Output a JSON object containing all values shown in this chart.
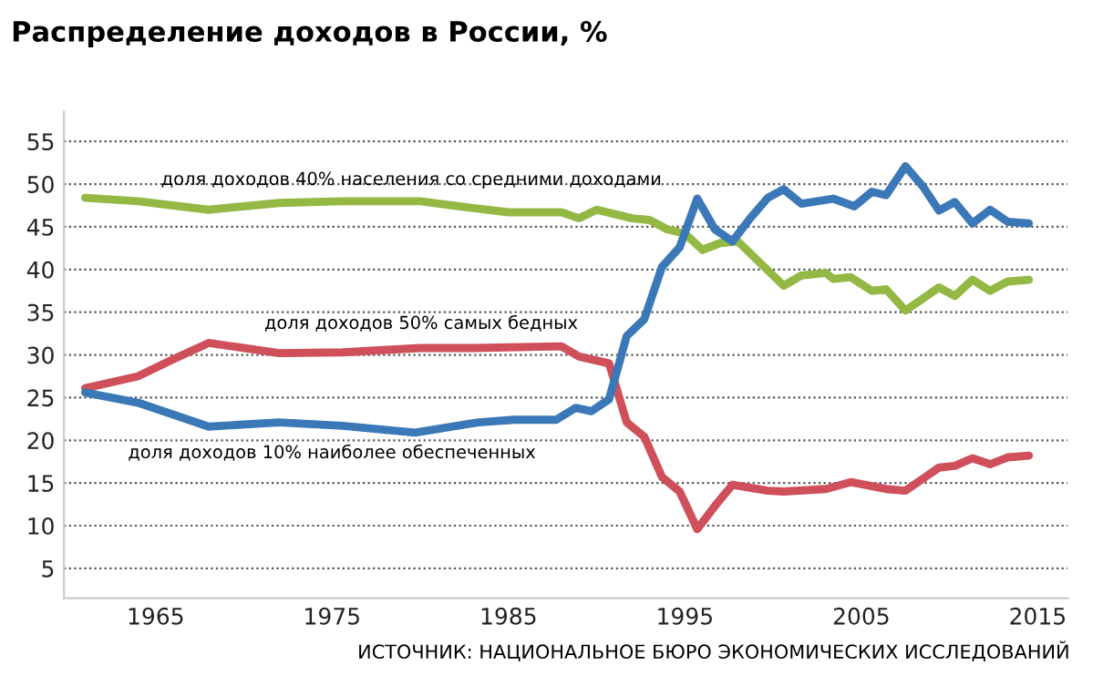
{
  "chart_data": {
    "type": "line",
    "title": "Распределение доходов в России, %",
    "annotations": [
      "ИСТОЧНИК: НАЦИОНАЛЬНОЕ БЮРО ЭКОНОМИЧЕСКИХ ИССЛЕДОВАНИЙ"
    ],
    "xlim": [
      1959.8,
      2016.7
    ],
    "xticks": [
      1965,
      1975,
      1985,
      1995,
      2005,
      2015
    ],
    "ylim": [
      1.5,
      58.5
    ],
    "yticks": [
      5,
      10,
      15,
      20,
      25,
      30,
      35,
      40,
      45,
      50,
      55
    ],
    "grid": "y",
    "legend": false,
    "marker": "none",
    "line_style": "solid",
    "series": [
      {
        "name": "доля доходов 40% населения со средними доходами",
        "color": "#93b844",
        "x": [
          1961,
          1964,
          1968,
          1972,
          1975.6,
          1980,
          1983,
          1985,
          1988,
          1989,
          1990,
          1991,
          1992,
          1993,
          1994,
          1995,
          1996,
          1997,
          1998,
          1999,
          2000,
          2000.6,
          2001.6,
          2003,
          2003.4,
          2004.4,
          2005.6,
          2006.4,
          2007.5,
          2009.4,
          2010.3,
          2011.3,
          2012.3,
          2013.3,
          2014.5
        ],
        "values": [
          48.4,
          48.0,
          47.0,
          47.8,
          48.0,
          48.0,
          47.2,
          46.7,
          46.7,
          46.0,
          47.0,
          46.5,
          46.0,
          45.8,
          44.7,
          44.2,
          42.3,
          43.1,
          43.3,
          41.3,
          39.3,
          38.1,
          39.3,
          39.6,
          38.9,
          39.1,
          37.5,
          37.7,
          35.2,
          37.9,
          36.9,
          38.8,
          37.5,
          38.6,
          38.8
        ]
      },
      {
        "name": "доля доходов 50% самых бедных",
        "color": "#cf4f5a",
        "x": [
          1961,
          1964,
          1966,
          1968,
          1972,
          1975.6,
          1980,
          1983,
          1988,
          1989,
          1990.7,
          1991.7,
          1992.7,
          1993.7,
          1994.7,
          1995.7,
          1996.7,
          1997.7,
          1999.7,
          2000.6,
          2003,
          2004.4,
          2006.4,
          2007.5,
          2009.4,
          2010.3,
          2011.3,
          2012.3,
          2013.3,
          2014.5
        ],
        "values": [
          26.1,
          27.5,
          29.5,
          31.4,
          30.2,
          30.3,
          30.8,
          30.8,
          31.0,
          29.8,
          29.0,
          22.1,
          20.4,
          15.7,
          14.0,
          9.6,
          12.3,
          14.8,
          14.1,
          14.0,
          14.3,
          15.1,
          14.3,
          14.1,
          16.8,
          17.0,
          17.9,
          17.2,
          18.0,
          18.2
        ]
      },
      {
        "name": "доля доходов 10% наиболее обеспеченных",
        "color": "#3a78b8",
        "x": [
          1961,
          1964,
          1968,
          1972,
          1975.6,
          1979.7,
          1983.3,
          1985.3,
          1987.7,
          1988.8,
          1989.7,
          1990.7,
          1991.7,
          1992.7,
          1993.7,
          1994.7,
          1995.7,
          1996.7,
          1997.7,
          1998.7,
          1999.7,
          2000.6,
          2001.6,
          2003.4,
          2004.6,
          2005.6,
          2006.4,
          2007.5,
          2008.5,
          2009.4,
          2010.3,
          2011.3,
          2012.3,
          2013.3,
          2014.5
        ],
        "values": [
          25.6,
          24.4,
          21.6,
          22.1,
          21.7,
          20.9,
          22.1,
          22.4,
          22.4,
          23.8,
          23.4,
          24.8,
          32.2,
          34.2,
          40.3,
          42.6,
          48.3,
          44.7,
          43.3,
          46.0,
          48.4,
          49.4,
          47.7,
          48.3,
          47.4,
          49.1,
          48.7,
          52.1,
          49.7,
          46.9,
          47.9,
          45.4,
          47.0,
          45.6,
          45.4
        ]
      }
    ]
  }
}
